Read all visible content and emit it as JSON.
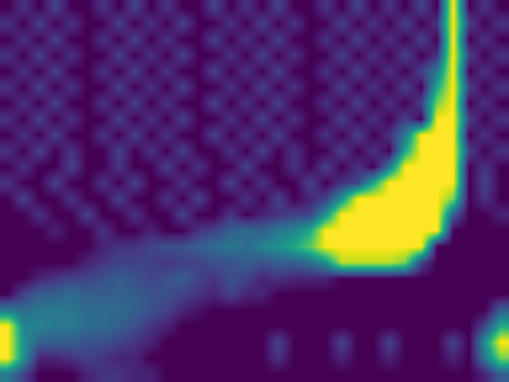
{
  "chart_data": {
    "type": "heatmap",
    "tick_labels": false,
    "color_range": [
      0,
      1
    ],
    "cells": [
      [
        0,
        0.15,
        0,
        0.2,
        0,
        0,
        0.15,
        0,
        0.2,
        0,
        0.15,
        0,
        0,
        0.2,
        0,
        0.15,
        0,
        0.2,
        0,
        0,
        0.15,
        0,
        0.2,
        0,
        0.15,
        0,
        0.2,
        0,
        1,
        0,
        0.15,
        0
      ],
      [
        0.15,
        0,
        0.2,
        0,
        0.15,
        0,
        0,
        0.2,
        0,
        0.15,
        0,
        0.2,
        0,
        0,
        0.15,
        0,
        0.2,
        0,
        0.15,
        0,
        0,
        0.2,
        0,
        0.15,
        0,
        0.2,
        0,
        0.15,
        1,
        0.2,
        0,
        0.15
      ],
      [
        0,
        0.15,
        0,
        0.2,
        0,
        0,
        0.15,
        0,
        0.2,
        0,
        0.15,
        0,
        0,
        0.2,
        0,
        0.15,
        0,
        0.2,
        0,
        0,
        0.15,
        0,
        0.2,
        0,
        0.15,
        0,
        0.2,
        0,
        1,
        0,
        0.15,
        0
      ],
      [
        0.15,
        0,
        0.2,
        0,
        0.15,
        0,
        0,
        0.2,
        0,
        0.15,
        0,
        0.2,
        0,
        0,
        0.15,
        0,
        0.2,
        0,
        0.15,
        0,
        0,
        0.2,
        0,
        0.15,
        0,
        0.2,
        0,
        0.15,
        1,
        0.2,
        0,
        0.15
      ],
      [
        0,
        0.15,
        0,
        0.2,
        0,
        0,
        0.15,
        0,
        0.2,
        0,
        0.15,
        0,
        0,
        0.2,
        0,
        0.15,
        0,
        0.2,
        0,
        0,
        0.15,
        0,
        0.2,
        0,
        0.15,
        0,
        0.2,
        0.4,
        1,
        0,
        0.15,
        0
      ],
      [
        0.15,
        0,
        0.2,
        0,
        0.15,
        0,
        0,
        0.2,
        0,
        0.15,
        0,
        0.2,
        0,
        0,
        0.15,
        0,
        0.2,
        0,
        0.15,
        0,
        0,
        0.2,
        0,
        0.15,
        0,
        0.2,
        0,
        0.6,
        1,
        0.2,
        0,
        0.15
      ],
      [
        0,
        0.15,
        0,
        0.2,
        0,
        0,
        0.15,
        0,
        0.2,
        0,
        0.15,
        0,
        0,
        0.2,
        0,
        0.15,
        0,
        0.2,
        0,
        0,
        0.15,
        0,
        0.2,
        0,
        0.15,
        0,
        0.2,
        0.8,
        1,
        0,
        0.15,
        0
      ],
      [
        0.15,
        0,
        0.2,
        0,
        0.15,
        0,
        0,
        0.2,
        0,
        0.15,
        0,
        0.2,
        0,
        0,
        0.15,
        0,
        0.2,
        0,
        0.15,
        0,
        0,
        0.2,
        0,
        0.15,
        0,
        0.2,
        0,
        1,
        1,
        0.2,
        0,
        0.15
      ],
      [
        0,
        0.15,
        0,
        0.2,
        0,
        0,
        0.15,
        0,
        0.2,
        0,
        0.15,
        0,
        0,
        0.2,
        0,
        0.15,
        0,
        0.2,
        0,
        0,
        0.15,
        0,
        0.2,
        0,
        0.15,
        0.4,
        1,
        1,
        1,
        0,
        0.15,
        0
      ],
      [
        0.15,
        0,
        0.2,
        0,
        0.15,
        0,
        0,
        0.2,
        0,
        0.15,
        0,
        0.2,
        0,
        0,
        0.15,
        0,
        0.2,
        0,
        0.15,
        0,
        0,
        0.2,
        0,
        0.15,
        0,
        0.6,
        1,
        1,
        1,
        0.2,
        0,
        0.15
      ],
      [
        0,
        0.15,
        0,
        0,
        0.2,
        0,
        0,
        0.15,
        0,
        0,
        0.2,
        0,
        0.15,
        0,
        0,
        0.2,
        0,
        0,
        0.15,
        0,
        0.2,
        0,
        0.15,
        0,
        0.4,
        1,
        1,
        1,
        1,
        0,
        0.15,
        0
      ],
      [
        0.15,
        0,
        0,
        0.2,
        0,
        0,
        0.15,
        0,
        0.2,
        0,
        0,
        0.15,
        0,
        0,
        0.2,
        0,
        0.15,
        0,
        0,
        0.2,
        0,
        0.15,
        0.2,
        0.6,
        1,
        1,
        1,
        1,
        1,
        0,
        0.2,
        0
      ],
      [
        0,
        0.2,
        0,
        0,
        0.15,
        0,
        0,
        0.2,
        0,
        0,
        0.15,
        0,
        0.2,
        0,
        0,
        0.15,
        0,
        0.2,
        0,
        0.1,
        0.2,
        0.5,
        1,
        1,
        1,
        1,
        1,
        1,
        0.8,
        0,
        0.15,
        0
      ],
      [
        0,
        0,
        0.15,
        0,
        0,
        0.2,
        0,
        0,
        0.15,
        0,
        0,
        0.2,
        0,
        0,
        0.15,
        0,
        0.1,
        0.15,
        0.2,
        0.2,
        0.5,
        1,
        1,
        1,
        1,
        1,
        1,
        1,
        0.3,
        0,
        0,
        0.1
      ],
      [
        0,
        0,
        0,
        0.1,
        0,
        0,
        0.15,
        0,
        0,
        0.1,
        0,
        0,
        0.15,
        0.2,
        0.3,
        0.35,
        0.3,
        0.4,
        0.45,
        0.6,
        1,
        1,
        1,
        1,
        1,
        1,
        1,
        1,
        0,
        0,
        0,
        0
      ],
      [
        0,
        0,
        0,
        0,
        0,
        0,
        0.1,
        0.15,
        0.15,
        0.2,
        0.25,
        0.25,
        0.3,
        0.35,
        0.4,
        0.35,
        0.45,
        0.5,
        0.6,
        0.75,
        1,
        1,
        1,
        1,
        1,
        1,
        1,
        0,
        0,
        0,
        0,
        0
      ],
      [
        0,
        0,
        0,
        0,
        0,
        0.1,
        0.15,
        0.2,
        0.2,
        0.2,
        0.15,
        0.2,
        0.2,
        0.25,
        0.25,
        0.3,
        0.25,
        0.3,
        0.3,
        0.35,
        0.5,
        0.9,
        0.9,
        0.9,
        0.9,
        0.8,
        0.2,
        0,
        0,
        0,
        0,
        0
      ],
      [
        0,
        0,
        0.1,
        0.15,
        0.2,
        0.2,
        0.25,
        0.3,
        0.25,
        0.2,
        0.25,
        0.3,
        0.2,
        0.15,
        0.25,
        0.2,
        0.1,
        0.15,
        0.1,
        0.1,
        0.1,
        0,
        0,
        0,
        0,
        0,
        0,
        0,
        0,
        0,
        0,
        0
      ],
      [
        0,
        0.2,
        0.3,
        0.3,
        0.35,
        0.3,
        0.3,
        0.3,
        0.3,
        0.25,
        0.25,
        0.2,
        0.15,
        0.1,
        0.2,
        0.1,
        0.1,
        0,
        0,
        0,
        0,
        0,
        0,
        0,
        0,
        0,
        0,
        0,
        0,
        0,
        0,
        0
      ],
      [
        0.4,
        0.35,
        0.4,
        0.4,
        0.4,
        0.35,
        0.35,
        0.35,
        0.3,
        0.25,
        0.2,
        0.1,
        0.05,
        0,
        0,
        0,
        0,
        0,
        0,
        0,
        0,
        0,
        0,
        0,
        0,
        0,
        0,
        0,
        0,
        0,
        0,
        0.3
      ],
      [
        1,
        0.45,
        0.45,
        0.4,
        0.4,
        0.35,
        0.35,
        0.3,
        0.25,
        0.15,
        0.1,
        0,
        0,
        0,
        0,
        0,
        0,
        0,
        0,
        0,
        0,
        0,
        0,
        0,
        0,
        0,
        0,
        0,
        0,
        0,
        0.2,
        0.6
      ],
      [
        1,
        0.5,
        0.3,
        0.3,
        0.3,
        0.25,
        0.25,
        0.2,
        0.15,
        0.1,
        0,
        0,
        0,
        0,
        0,
        0,
        0,
        0.2,
        0,
        0,
        0,
        0.2,
        0,
        0,
        0.2,
        0,
        0,
        0,
        0.2,
        0,
        0.5,
        1
      ],
      [
        1,
        0.5,
        0.1,
        0.1,
        0.15,
        0.2,
        0.15,
        0.1,
        0.1,
        0,
        0,
        0,
        0,
        0,
        0,
        0,
        0,
        0.15,
        0,
        0,
        0,
        0.1,
        0,
        0,
        0.1,
        0,
        0,
        0,
        0.1,
        0,
        0.4,
        0.8
      ],
      [
        0.4,
        0.2,
        0,
        0,
        0,
        0.1,
        0.15,
        0.15,
        0.1,
        0.1,
        0,
        0,
        0,
        0,
        0,
        0,
        0,
        0,
        0,
        0,
        0,
        0,
        0,
        0,
        0,
        0,
        0,
        0,
        0,
        0,
        0.1,
        0.3
      ]
    ]
  }
}
